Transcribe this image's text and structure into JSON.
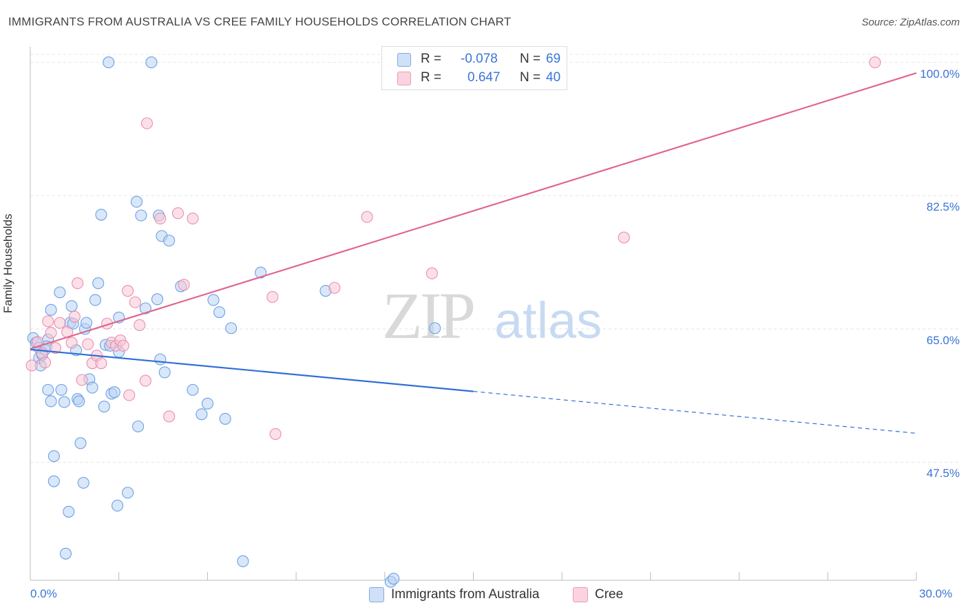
{
  "header": {
    "title": "IMMIGRANTS FROM AUSTRALIA VS CREE FAMILY HOUSEHOLDS CORRELATION CHART",
    "source": "Source: ZipAtlas.com"
  },
  "watermark": {
    "zip": "ZIP",
    "atlas": "atlas"
  },
  "legend": {
    "r_label": "R =",
    "n_label": "N =",
    "rows": [
      {
        "r": "-0.078",
        "n": "69",
        "color": "#a9c6ef"
      },
      {
        "r": "0.647",
        "n": "40",
        "color": "#f5b7c9"
      }
    ]
  },
  "chart_data": {
    "type": "scatter",
    "title": "IMMIGRANTS FROM AUSTRALIA VS CREE FAMILY HOUSEHOLDS CORRELATION CHART",
    "xlabel": "",
    "ylabel": "Family Households",
    "xlim": [
      0,
      30
    ],
    "ylim": [
      32,
      101.5
    ],
    "x_tick_labels": [
      "0.0%",
      "30.0%"
    ],
    "y_ticks": [
      {
        "value": 100,
        "label": "100.0%"
      },
      {
        "value": 82.5,
        "label": "82.5%"
      },
      {
        "value": 65,
        "label": "65.0%"
      },
      {
        "value": 47.5,
        "label": "47.5%"
      }
    ],
    "grid": true,
    "series": [
      {
        "name": "Immigrants from Australia",
        "color": "#6aa0e6",
        "fill": "#b9d3f3",
        "points": [
          [
            0.1,
            63.8
          ],
          [
            0.2,
            63.2
          ],
          [
            0.3,
            62.5
          ],
          [
            0.3,
            61.2
          ],
          [
            0.35,
            60.2
          ],
          [
            0.4,
            61.6
          ],
          [
            0.5,
            62.3
          ],
          [
            0.6,
            63.6
          ],
          [
            0.6,
            57.0
          ],
          [
            0.7,
            55.5
          ],
          [
            0.7,
            67.5
          ],
          [
            0.8,
            48.3
          ],
          [
            0.8,
            45.0
          ],
          [
            1.0,
            69.8
          ],
          [
            1.05,
            57.0
          ],
          [
            1.15,
            55.4
          ],
          [
            1.3,
            41.0
          ],
          [
            1.35,
            65.8
          ],
          [
            1.4,
            68.0
          ],
          [
            1.55,
            62.2
          ],
          [
            1.6,
            55.8
          ],
          [
            1.65,
            55.5
          ],
          [
            1.7,
            50.0
          ],
          [
            1.85,
            65.0
          ],
          [
            1.9,
            65.8
          ],
          [
            1.8,
            44.8
          ],
          [
            2.0,
            58.4
          ],
          [
            2.1,
            57.3
          ],
          [
            2.2,
            68.8
          ],
          [
            2.3,
            71.0
          ],
          [
            2.4,
            80.0
          ],
          [
            2.5,
            54.8
          ],
          [
            2.55,
            62.9
          ],
          [
            2.7,
            62.8
          ],
          [
            2.75,
            56.5
          ],
          [
            2.85,
            56.7
          ],
          [
            2.95,
            41.8
          ],
          [
            3.0,
            66.5
          ],
          [
            3.3,
            43.5
          ],
          [
            3.6,
            81.7
          ],
          [
            3.65,
            52.2
          ],
          [
            3.75,
            79.9
          ],
          [
            3.9,
            67.7
          ],
          [
            4.1,
            100.0
          ],
          [
            4.3,
            68.9
          ],
          [
            4.35,
            79.9
          ],
          [
            4.4,
            61.0
          ],
          [
            4.45,
            77.2
          ],
          [
            4.55,
            59.3
          ],
          [
            4.7,
            76.6
          ],
          [
            5.1,
            70.6
          ],
          [
            5.5,
            57.0
          ],
          [
            5.8,
            53.8
          ],
          [
            6.0,
            55.2
          ],
          [
            6.2,
            68.8
          ],
          [
            6.4,
            67.2
          ],
          [
            6.8,
            65.1
          ],
          [
            6.6,
            53.2
          ],
          [
            7.2,
            34.5
          ],
          [
            7.8,
            72.4
          ],
          [
            10.0,
            70.0
          ],
          [
            12.2,
            31.8
          ],
          [
            12.3,
            32.2
          ],
          [
            13.7,
            65.1
          ],
          [
            2.65,
            100.0
          ],
          [
            0.55,
            62.7
          ],
          [
            1.45,
            65.7
          ],
          [
            3.0,
            62.0
          ],
          [
            1.2,
            35.5
          ]
        ]
      },
      {
        "name": "Cree",
        "color": "#ea8eae",
        "fill": "#f8c6d6",
        "points": [
          [
            0.05,
            60.2
          ],
          [
            0.25,
            63.3
          ],
          [
            0.4,
            61.8
          ],
          [
            0.5,
            60.6
          ],
          [
            0.6,
            66.0
          ],
          [
            0.7,
            64.5
          ],
          [
            0.85,
            62.5
          ],
          [
            1.0,
            65.8
          ],
          [
            1.25,
            64.6
          ],
          [
            1.4,
            63.2
          ],
          [
            1.5,
            66.6
          ],
          [
            1.6,
            71.0
          ],
          [
            1.75,
            58.3
          ],
          [
            1.95,
            63.0
          ],
          [
            2.1,
            60.5
          ],
          [
            2.25,
            61.5
          ],
          [
            2.4,
            60.5
          ],
          [
            2.6,
            65.7
          ],
          [
            2.75,
            63.2
          ],
          [
            2.9,
            62.8
          ],
          [
            3.05,
            63.5
          ],
          [
            3.15,
            62.8
          ],
          [
            3.3,
            70.0
          ],
          [
            3.35,
            56.3
          ],
          [
            3.55,
            68.5
          ],
          [
            3.7,
            65.5
          ],
          [
            3.9,
            58.2
          ],
          [
            3.95,
            92.0
          ],
          [
            4.4,
            79.5
          ],
          [
            4.7,
            53.5
          ],
          [
            5.0,
            80.2
          ],
          [
            5.2,
            70.8
          ],
          [
            5.5,
            79.5
          ],
          [
            8.2,
            69.2
          ],
          [
            8.3,
            51.2
          ],
          [
            10.3,
            70.4
          ],
          [
            11.4,
            79.7
          ],
          [
            13.6,
            72.3
          ],
          [
            20.1,
            77.0
          ],
          [
            28.6,
            100.0
          ]
        ]
      }
    ],
    "trend_lines": [
      {
        "series": "Immigrants from Australia",
        "from": [
          0,
          62.3
        ],
        "to": [
          15,
          56.8
        ],
        "dashed_to": [
          30,
          51.3
        ]
      },
      {
        "series": "Cree",
        "from": [
          0,
          62.4
        ],
        "to": [
          30,
          98.6
        ]
      }
    ]
  },
  "bottom_legend": [
    {
      "label": "Immigrants from Australia",
      "color": "#a9c6ef"
    },
    {
      "label": "Cree",
      "color": "#f5b7c9"
    }
  ]
}
